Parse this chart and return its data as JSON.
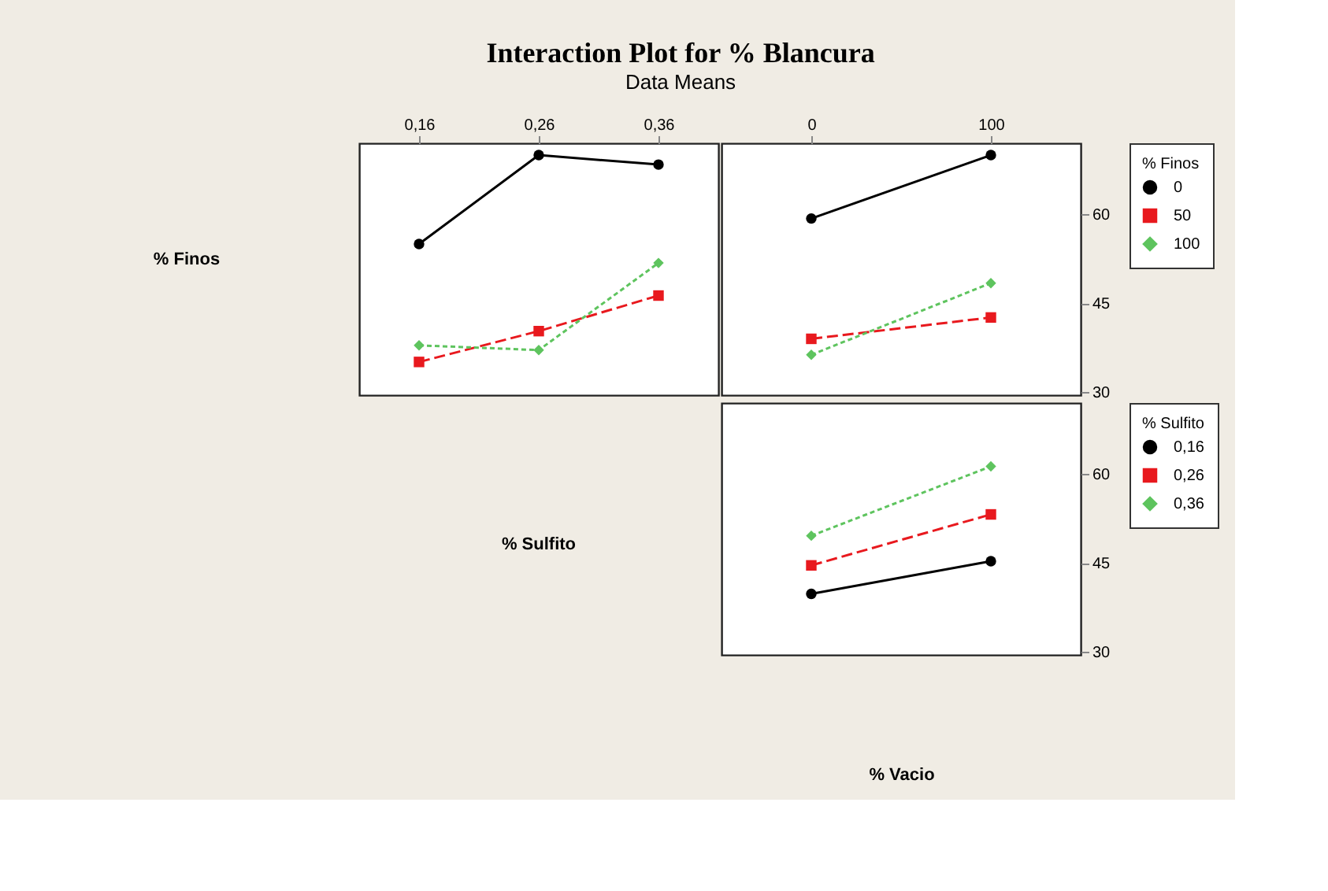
{
  "chart_data": [
    {
      "type": "line",
      "title": "Interaction Plot for % Blancura",
      "subtitle": "Data Means",
      "xlabel": "% Sulfito",
      "ylabel": "% Finos",
      "categories": [
        "0,16",
        "0,26",
        "0,36"
      ],
      "ylim": [
        29.5,
        72
      ],
      "yticks": [
        30,
        45,
        60
      ],
      "tick_labels": "x",
      "legend": false,
      "series": [
        {
          "color": "#000000",
          "marker": "circle",
          "line_style": "solid",
          "values": [
            55.0,
            70.0,
            68.4
          ]
        },
        {
          "color": "#e8191e",
          "marker": "square",
          "line_style": "dashed",
          "values": [
            35.1,
            40.3,
            46.3
          ]
        },
        {
          "color": "#5ec45e",
          "marker": "diamond",
          "line_style": "dotted",
          "values": [
            37.9,
            37.1,
            51.8
          ]
        }
      ]
    },
    {
      "type": "line",
      "legend_title": "% Finos",
      "categories": [
        "0",
        "100"
      ],
      "ylim": [
        29.5,
        72
      ],
      "yticks": [
        30,
        45,
        60
      ],
      "legend": "right",
      "series": [
        {
          "name": "0",
          "color": "#000000",
          "marker": "circle",
          "line_style": "solid",
          "values": [
            59.3,
            70.0
          ]
        },
        {
          "name": "50",
          "color": "#e8191e",
          "marker": "square",
          "line_style": "dashed",
          "values": [
            39.0,
            42.6
          ]
        },
        {
          "name": "100",
          "color": "#5ec45e",
          "marker": "diamond",
          "line_style": "dotted",
          "values": [
            36.3,
            48.4
          ]
        }
      ]
    },
    {
      "type": "line",
      "legend_title": "% Sulfito",
      "xlabel": "% Vacio",
      "categories": [
        null,
        null
      ],
      "ylim": [
        29.5,
        72
      ],
      "yticks": [
        30,
        45,
        60
      ],
      "tick_labels": "y",
      "legend": "right",
      "series": [
        {
          "name": "0,16",
          "color": "#000000",
          "marker": "circle",
          "line_style": "solid",
          "values": [
            39.8,
            45.3
          ]
        },
        {
          "name": "0,26",
          "color": "#e8191e",
          "marker": "square",
          "line_style": "dashed",
          "values": [
            44.6,
            53.2
          ]
        },
        {
          "name": "0,36",
          "color": "#5ec45e",
          "marker": "diamond",
          "line_style": "dotted",
          "values": [
            49.6,
            61.3
          ]
        }
      ]
    }
  ]
}
